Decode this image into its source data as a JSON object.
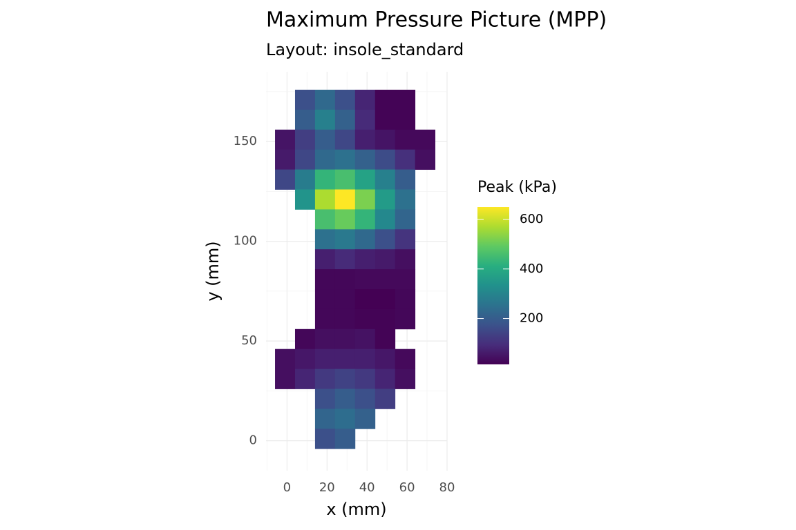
{
  "chart_data": {
    "type": "heatmap",
    "title": "Maximum Pressure Picture (MPP)",
    "subtitle": "Layout: insole_standard",
    "x_label": "x (mm)",
    "y_label": "y (mm)",
    "legend_title": "Peak (kPa)",
    "x": [
      9,
      19,
      29,
      39,
      49,
      59,
      9,
      19,
      29,
      39,
      49,
      59,
      -1,
      9,
      19,
      29,
      39,
      49,
      59,
      69,
      -1,
      9,
      19,
      29,
      39,
      49,
      59,
      69,
      -1,
      9,
      19,
      29,
      39,
      49,
      59,
      9,
      19,
      29,
      39,
      49,
      59,
      19,
      29,
      39,
      49,
      59,
      19,
      29,
      39,
      49,
      59,
      19,
      29,
      39,
      49,
      59,
      19,
      29,
      39,
      49,
      59,
      19,
      29,
      39,
      49,
      59,
      19,
      29,
      39,
      49,
      59,
      9,
      19,
      29,
      39,
      49,
      -1,
      9,
      19,
      29,
      39,
      49,
      59,
      -1,
      9,
      19,
      29,
      39,
      49,
      59,
      19,
      29,
      39,
      49,
      19,
      29,
      39,
      19,
      29
    ],
    "y": [
      171,
      171,
      171,
      171,
      171,
      171,
      161,
      161,
      161,
      161,
      161,
      161,
      151,
      151,
      151,
      151,
      151,
      151,
      151,
      151,
      141,
      141,
      141,
      141,
      141,
      141,
      141,
      141,
      131,
      131,
      131,
      131,
      131,
      131,
      131,
      121,
      121,
      121,
      121,
      121,
      121,
      111,
      111,
      111,
      111,
      111,
      101,
      101,
      101,
      101,
      101,
      91,
      91,
      91,
      91,
      91,
      81,
      81,
      81,
      81,
      81,
      71,
      71,
      71,
      71,
      71,
      61,
      61,
      61,
      61,
      61,
      51,
      51,
      51,
      51,
      51,
      41,
      41,
      41,
      41,
      41,
      41,
      41,
      31,
      31,
      31,
      31,
      31,
      31,
      31,
      21,
      21,
      21,
      21,
      11,
      11,
      11,
      1,
      1
    ],
    "values": [
      170,
      230,
      170,
      80,
      20,
      20,
      200,
      290,
      210,
      90,
      20,
      20,
      50,
      130,
      200,
      150,
      70,
      50,
      30,
      30,
      60,
      150,
      230,
      250,
      210,
      160,
      100,
      40,
      150,
      280,
      430,
      460,
      380,
      290,
      200,
      340,
      570,
      650,
      520,
      360,
      250,
      460,
      500,
      430,
      310,
      220,
      250,
      270,
      230,
      170,
      110,
      70,
      90,
      70,
      60,
      40,
      25,
      25,
      30,
      30,
      30,
      25,
      25,
      15,
      15,
      25,
      25,
      25,
      20,
      20,
      25,
      25,
      40,
      40,
      45,
      20,
      40,
      55,
      70,
      70,
      70,
      55,
      30,
      40,
      80,
      120,
      140,
      120,
      80,
      40,
      170,
      200,
      170,
      130,
      220,
      240,
      210,
      170,
      200
    ],
    "xlim": [
      -10.5,
      80
    ],
    "ylim": [
      -15,
      185
    ],
    "xticks": [
      0,
      20,
      40,
      60,
      80
    ],
    "yticks": [
      0,
      50,
      100,
      150
    ],
    "zlim": [
      15,
      650
    ],
    "zticks": [
      200,
      400,
      600
    ],
    "colorscale": [
      "#440154",
      "#472d7b",
      "#3b528b",
      "#2c728e",
      "#21918c",
      "#28ae80",
      "#5ec962",
      "#addc30",
      "#fde725"
    ],
    "grid": true
  }
}
